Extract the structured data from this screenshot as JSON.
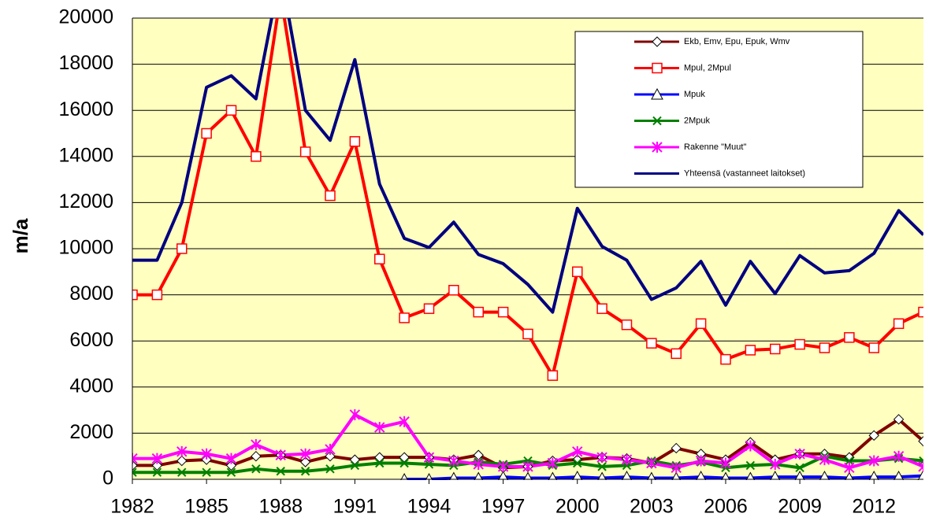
{
  "chart_data": {
    "type": "line",
    "y_label": "m/a",
    "x": [
      1982,
      1983,
      1984,
      1985,
      1986,
      1987,
      1988,
      1989,
      1990,
      1991,
      1992,
      1993,
      1994,
      1995,
      1996,
      1997,
      1998,
      1999,
      2000,
      2001,
      2002,
      2003,
      2004,
      2005,
      2006,
      2007,
      2008,
      2009,
      2010,
      2011,
      2012,
      2013,
      2014
    ],
    "xlim": [
      1982,
      2014
    ],
    "xticks": [
      1982,
      1985,
      1988,
      1991,
      1994,
      1997,
      2000,
      2003,
      2006,
      2009,
      2012
    ],
    "ylim": [
      0,
      20000
    ],
    "yticks": [
      0,
      2000,
      4000,
      6000,
      8000,
      10000,
      12000,
      14000,
      16000,
      18000,
      20000
    ],
    "grid": true,
    "background": "#ffffc0",
    "legend": "upper right",
    "series": [
      {
        "name": "Ekb, Emv, Epu, Epuk, Wmv",
        "color": "#800000",
        "marker": "diamond",
        "values": [
          600,
          600,
          800,
          850,
          600,
          1000,
          1050,
          750,
          1000,
          850,
          950,
          950,
          950,
          850,
          1050,
          500,
          550,
          800,
          850,
          950,
          900,
          700,
          1350,
          1100,
          850,
          1600,
          850,
          1100,
          1100,
          950,
          1900,
          2600,
          1650
        ]
      },
      {
        "name": "Mpul, 2Mpul",
        "color": "#ff0000",
        "marker": "square",
        "values": [
          8000,
          8000,
          10000,
          15000,
          16000,
          14000,
          21000,
          14200,
          12300,
          14650,
          9550,
          7000,
          7400,
          8200,
          7250,
          7250,
          6300,
          4500,
          9000,
          7400,
          6700,
          5900,
          5450,
          6750,
          5200,
          5600,
          5650,
          5850,
          5700,
          6150,
          5700,
          6750,
          7250
        ]
      },
      {
        "name": "Mpuk",
        "color": "#0000ff",
        "marker": "triangle",
        "values": [
          null,
          null,
          null,
          null,
          null,
          null,
          null,
          null,
          null,
          null,
          null,
          0,
          0,
          50,
          50,
          100,
          50,
          50,
          100,
          50,
          100,
          50,
          50,
          100,
          50,
          50,
          100,
          100,
          100,
          50,
          100,
          100,
          150
        ]
      },
      {
        "name": "2Mpuk",
        "color": "#008000",
        "marker": "x",
        "values": [
          300,
          300,
          300,
          300,
          300,
          450,
          350,
          350,
          450,
          600,
          700,
          700,
          650,
          600,
          750,
          650,
          800,
          600,
          700,
          550,
          600,
          800,
          600,
          750,
          500,
          600,
          650,
          500,
          1000,
          800,
          800,
          900,
          800
        ]
      },
      {
        "name": "Rakenne \"Muut\"",
        "color": "#ff00ff",
        "marker": "star",
        "values": [
          900,
          900,
          1200,
          1100,
          900,
          1500,
          1050,
          1100,
          1300,
          2800,
          2250,
          2500,
          950,
          800,
          650,
          550,
          550,
          700,
          1200,
          950,
          850,
          700,
          500,
          800,
          700,
          1450,
          650,
          1100,
          850,
          500,
          800,
          1000,
          550
        ]
      },
      {
        "name": "Yhteensä (vastanneet laitokset)",
        "color": "#000080",
        "values": [
          9500,
          9500,
          12000,
          17000,
          17500,
          16500,
          22000,
          16000,
          14700,
          18200,
          12800,
          10450,
          10050,
          11150,
          9750,
          9350,
          8450,
          7250,
          11750,
          10100,
          9500,
          7800,
          8300,
          9450,
          7550,
          9450,
          8050,
          9700,
          8950,
          9050,
          9800,
          11650,
          10600
        ]
      }
    ]
  }
}
